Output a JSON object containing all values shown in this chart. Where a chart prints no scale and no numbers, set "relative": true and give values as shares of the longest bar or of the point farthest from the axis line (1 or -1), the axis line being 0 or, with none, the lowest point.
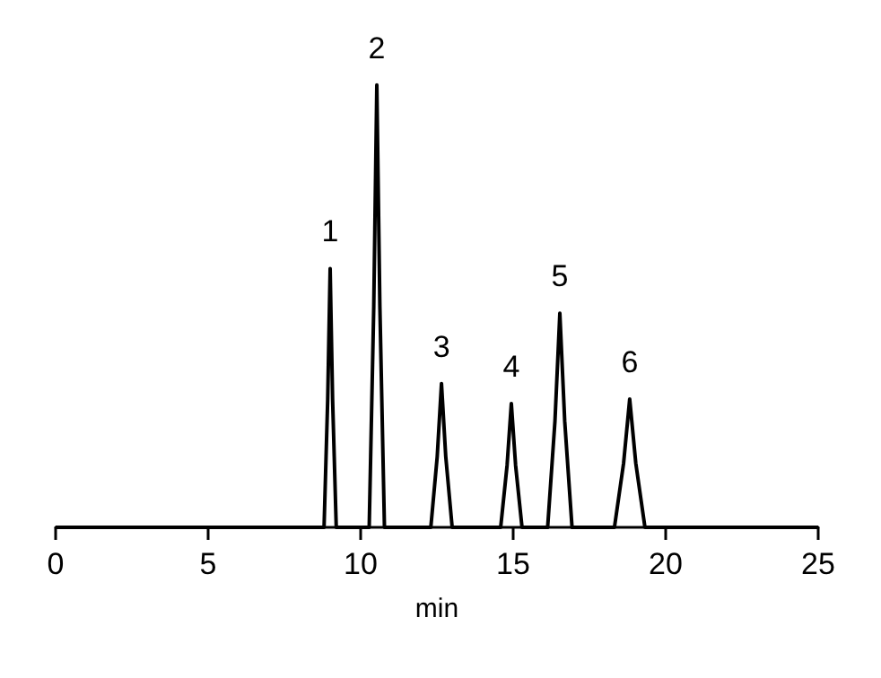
{
  "chart_data": {
    "type": "line",
    "relative": true,
    "xlabel": "min",
    "xlim": [
      0,
      25
    ],
    "xticks": [
      0,
      5,
      10,
      15,
      20,
      25
    ],
    "grid": false,
    "marker": "none",
    "line_style": "solid",
    "series": [
      {
        "color": "#000000",
        "x": [
          0,
          8.8,
          8.92,
          9.0,
          9.08,
          9.2,
          10.28,
          10.43,
          10.53,
          10.63,
          10.78,
          12.3,
          12.51,
          12.65,
          12.79,
          13.0,
          14.59,
          14.8,
          14.94,
          15.08,
          15.29,
          16.13,
          16.37,
          16.53,
          16.69,
          16.93,
          18.32,
          18.62,
          18.82,
          19.02,
          19.32,
          25
        ],
        "values": [
          0,
          0,
          0.29,
          0.585,
          0.29,
          0,
          0,
          0.5,
          1,
          0.5,
          0,
          0,
          0.16,
          0.325,
          0.16,
          0,
          0,
          0.14,
          0.28,
          0.14,
          0,
          0,
          0.24,
          0.484,
          0.24,
          0,
          0,
          0.145,
          0.29,
          0.145,
          0,
          0
        ]
      }
    ],
    "annotations": [
      {
        "text": "1",
        "x": 9.0,
        "y": 0.585
      },
      {
        "text": "2",
        "x": 10.53,
        "y": 1
      },
      {
        "text": "3",
        "x": 12.65,
        "y": 0.325
      },
      {
        "text": "4",
        "x": 14.94,
        "y": 0.28
      },
      {
        "text": "5",
        "x": 16.53,
        "y": 0.484
      },
      {
        "text": "6",
        "x": 18.82,
        "y": 0.29
      }
    ]
  }
}
